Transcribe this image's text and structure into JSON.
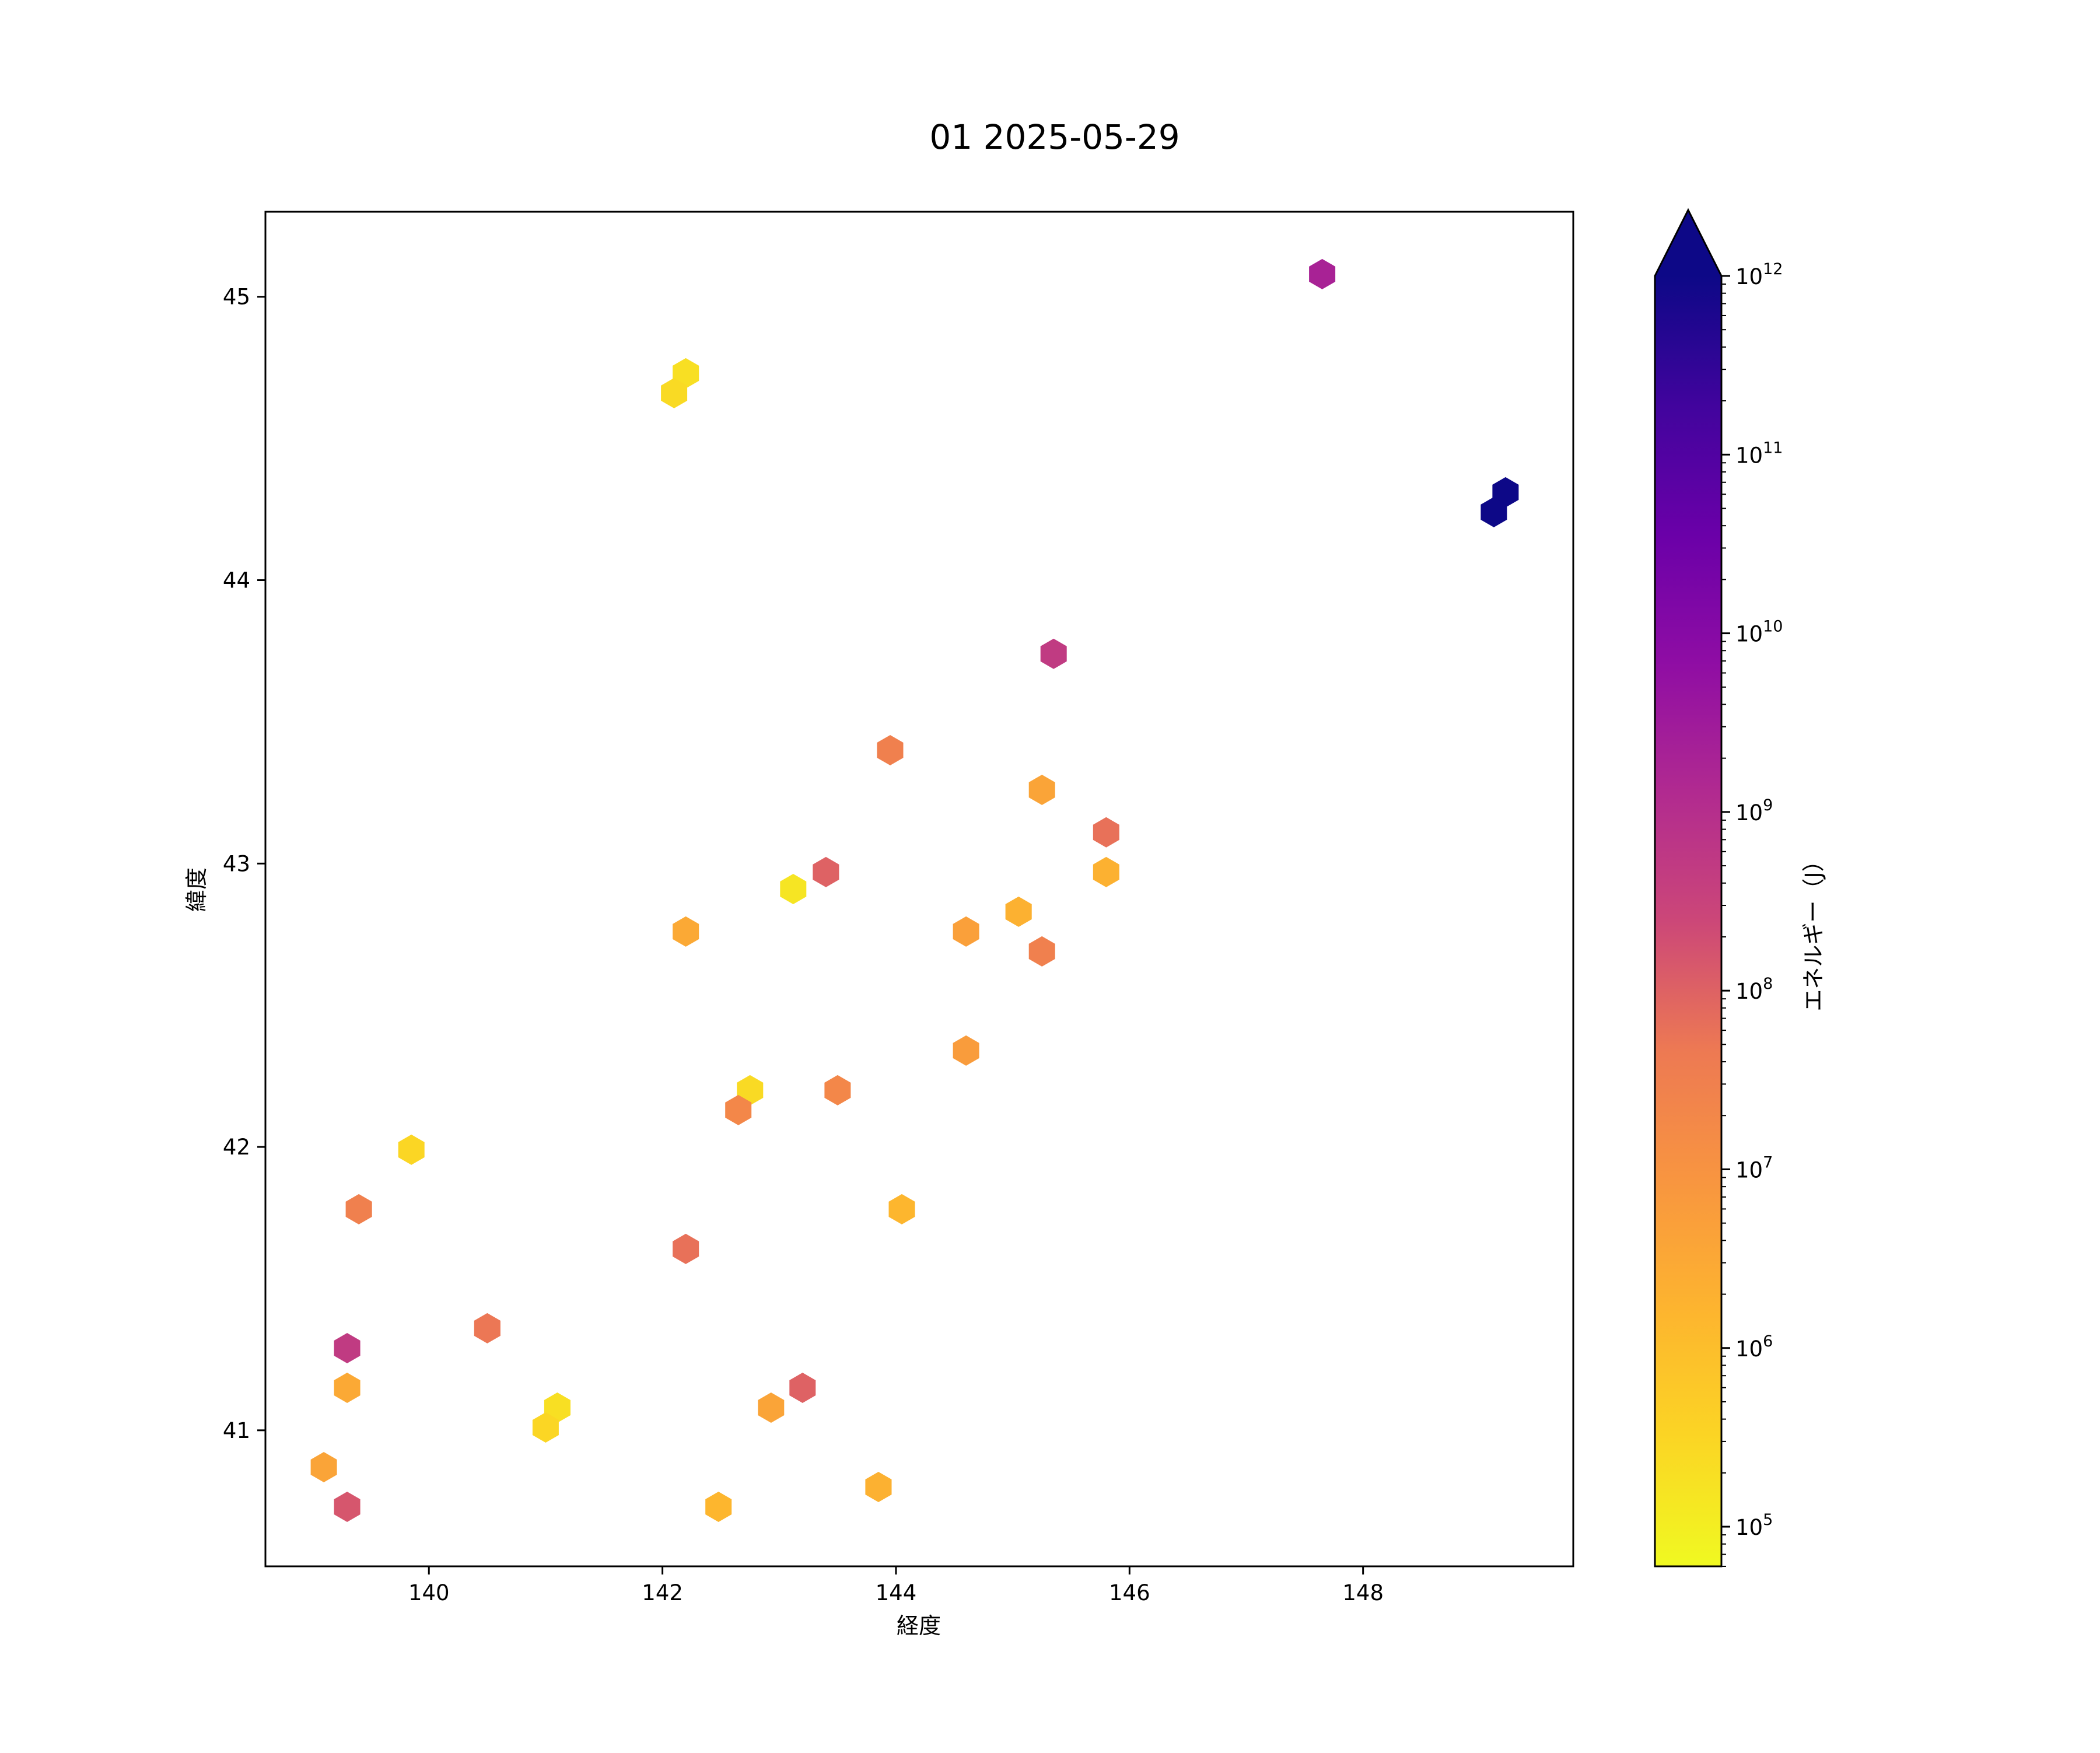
{
  "chart_data": {
    "type": "heatmap",
    "subtype": "hexbin",
    "title": "01 2025-05-29",
    "xlabel": "経度",
    "ylabel": "緯度",
    "xlim": [
      138.6,
      149.8
    ],
    "ylim": [
      40.52,
      45.3
    ],
    "xticks": [
      140,
      142,
      144,
      146,
      148
    ],
    "yticks": [
      41,
      42,
      43,
      44,
      45
    ],
    "grid": false,
    "colorbar": {
      "label": "エネルギー（J）",
      "scale": "log",
      "colormap": "plasma_r",
      "range": [
        60000,
        1000000000000
      ],
      "extend": "max",
      "tick_exponents": [
        5,
        6,
        7,
        8,
        9,
        10,
        11,
        12
      ],
      "tick_base": "10"
    },
    "points": [
      {
        "lon": 147.65,
        "lat": 45.08,
        "energy": 2000000000
      },
      {
        "lon": 142.2,
        "lat": 44.73,
        "energy": 200000
      },
      {
        "lon": 142.1,
        "lat": 44.66,
        "energy": 250000
      },
      {
        "lon": 149.22,
        "lat": 44.31,
        "energy": 1000000000000
      },
      {
        "lon": 149.12,
        "lat": 44.24,
        "energy": 1000000000000
      },
      {
        "lon": 145.35,
        "lat": 43.74,
        "energy": 500000000
      },
      {
        "lon": 143.95,
        "lat": 43.4,
        "energy": 30000000
      },
      {
        "lon": 145.25,
        "lat": 43.26,
        "energy": 4000000
      },
      {
        "lon": 145.8,
        "lat": 43.11,
        "energy": 60000000
      },
      {
        "lon": 143.4,
        "lat": 42.97,
        "energy": 100000000
      },
      {
        "lon": 145.8,
        "lat": 42.97,
        "energy": 2000000
      },
      {
        "lon": 143.12,
        "lat": 42.91,
        "energy": 150000
      },
      {
        "lon": 145.05,
        "lat": 42.83,
        "energy": 2000000
      },
      {
        "lon": 142.2,
        "lat": 42.76,
        "energy": 3000000
      },
      {
        "lon": 144.6,
        "lat": 42.76,
        "energy": 5000000
      },
      {
        "lon": 145.25,
        "lat": 42.69,
        "energy": 30000000
      },
      {
        "lon": 144.6,
        "lat": 42.34,
        "energy": 6000000
      },
      {
        "lon": 142.75,
        "lat": 42.2,
        "energy": 250000
      },
      {
        "lon": 143.5,
        "lat": 42.2,
        "energy": 20000000
      },
      {
        "lon": 142.65,
        "lat": 42.13,
        "energy": 20000000
      },
      {
        "lon": 139.85,
        "lat": 41.99,
        "energy": 300000
      },
      {
        "lon": 139.4,
        "lat": 41.78,
        "energy": 30000000
      },
      {
        "lon": 144.05,
        "lat": 41.78,
        "energy": 1500000
      },
      {
        "lon": 142.2,
        "lat": 41.64,
        "energy": 60000000
      },
      {
        "lon": 140.5,
        "lat": 41.36,
        "energy": 50000000
      },
      {
        "lon": 139.3,
        "lat": 41.29,
        "energy": 500000000
      },
      {
        "lon": 139.3,
        "lat": 41.15,
        "energy": 3000000
      },
      {
        "lon": 143.2,
        "lat": 41.15,
        "energy": 100000000
      },
      {
        "lon": 141.1,
        "lat": 41.08,
        "energy": 200000
      },
      {
        "lon": 142.93,
        "lat": 41.08,
        "energy": 4000000
      },
      {
        "lon": 141.0,
        "lat": 41.01,
        "energy": 300000
      },
      {
        "lon": 139.1,
        "lat": 40.87,
        "energy": 4000000
      },
      {
        "lon": 143.85,
        "lat": 40.8,
        "energy": 2000000
      },
      {
        "lon": 139.3,
        "lat": 40.73,
        "energy": 150000000
      },
      {
        "lon": 142.48,
        "lat": 40.73,
        "energy": 1500000
      }
    ]
  }
}
